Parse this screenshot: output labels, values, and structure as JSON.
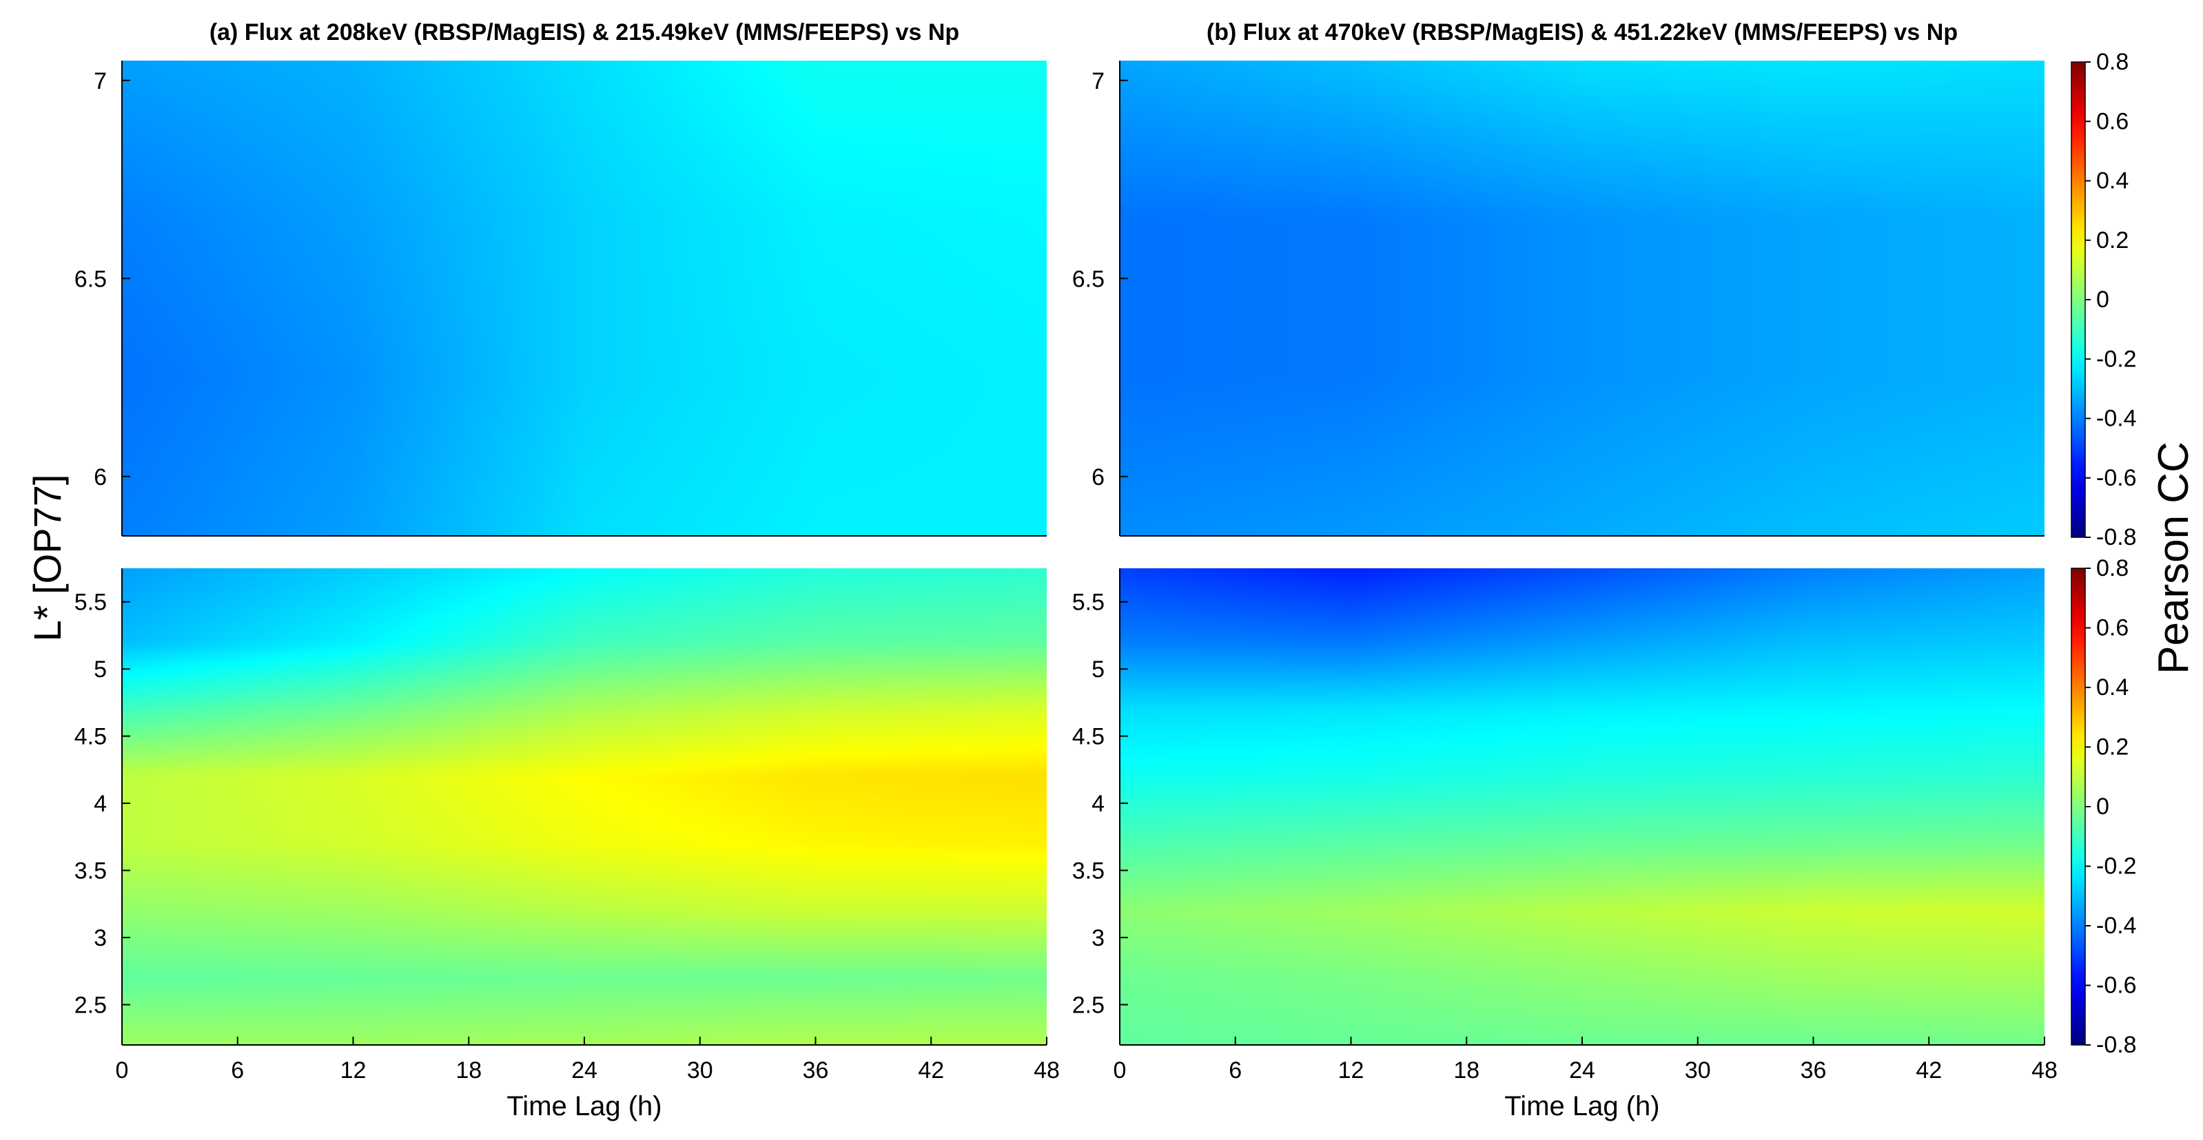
{
  "figure": {
    "ylabel": "L* [OP77]",
    "xlabel": "Time Lag (h)",
    "colorbar_label": "Pearson CC"
  },
  "chart_data": [
    {
      "type": "heatmap",
      "panel": "top-left",
      "title": "(a) Flux at 208keV (RBSP/MagEIS) & 215.49keV (MMS/FEEPS) vs Np",
      "xlabel": "",
      "ylabel": "L* [OP77]",
      "xlim": [
        0,
        48
      ],
      "ylim": [
        5.85,
        7.05
      ],
      "xticks": [],
      "yticks": [
        6,
        6.5,
        7
      ],
      "ytick_labels": [
        "6",
        "6.5",
        "7"
      ],
      "x": [
        0,
        12,
        24,
        36,
        48
      ],
      "y": [
        5.85,
        6.25,
        6.65,
        7.05
      ],
      "values": [
        [
          -0.4,
          -0.35,
          -0.25,
          -0.22,
          -0.22
        ],
        [
          -0.42,
          -0.37,
          -0.27,
          -0.23,
          -0.22
        ],
        [
          -0.4,
          -0.35,
          -0.27,
          -0.22,
          -0.21
        ],
        [
          -0.35,
          -0.32,
          -0.25,
          -0.18,
          -0.18
        ]
      ],
      "clim": [
        -0.8,
        0.8
      ],
      "colormap": "jet"
    },
    {
      "type": "heatmap",
      "panel": "bottom-left",
      "title": "",
      "xlabel": "Time Lag (h)",
      "ylabel": "L* [OP77]",
      "xlim": [
        0,
        48
      ],
      "ylim": [
        2.2,
        5.75
      ],
      "xticks": [
        0,
        6,
        12,
        18,
        24,
        30,
        36,
        42,
        48
      ],
      "yticks": [
        2.5,
        3,
        3.5,
        4,
        4.5,
        5,
        5.5
      ],
      "ytick_labels": [
        "2.5",
        "3",
        "3.5",
        "4",
        "4.5",
        "5",
        "5.5"
      ],
      "x": [
        0,
        12,
        24,
        36,
        48
      ],
      "y": [
        2.2,
        2.7,
        3.2,
        3.7,
        4.2,
        4.7,
        5.2,
        5.75
      ],
      "values": [
        [
          0.05,
          0.05,
          0.06,
          0.08,
          0.08
        ],
        [
          -0.05,
          -0.04,
          -0.03,
          -0.03,
          -0.02
        ],
        [
          0.03,
          0.05,
          0.09,
          0.12,
          0.12
        ],
        [
          0.1,
          0.13,
          0.18,
          0.21,
          0.22
        ],
        [
          0.1,
          0.14,
          0.2,
          0.24,
          0.25
        ],
        [
          -0.1,
          -0.03,
          0.07,
          0.12,
          0.14
        ],
        [
          -0.3,
          -0.22,
          -0.1,
          -0.06,
          -0.05
        ],
        [
          -0.35,
          -0.28,
          -0.2,
          -0.15,
          -0.13
        ]
      ],
      "clim": [
        -0.8,
        0.8
      ],
      "colormap": "jet"
    },
    {
      "type": "heatmap",
      "panel": "top-right",
      "title": "(b) Flux at 470keV (RBSP/MagEIS) & 451.22keV (MMS/FEEPS) vs Np",
      "xlabel": "",
      "ylabel": "",
      "xlim": [
        0,
        48
      ],
      "ylim": [
        5.85,
        7.05
      ],
      "xticks": [],
      "yticks": [
        6,
        6.5,
        7
      ],
      "ytick_labels": [
        "6",
        "6.5",
        "7"
      ],
      "x": [
        0,
        12,
        24,
        36,
        48
      ],
      "y": [
        5.85,
        6.25,
        6.65,
        7.05
      ],
      "values": [
        [
          -0.38,
          -0.36,
          -0.33,
          -0.3,
          -0.28
        ],
        [
          -0.42,
          -0.41,
          -0.37,
          -0.34,
          -0.32
        ],
        [
          -0.42,
          -0.41,
          -0.37,
          -0.34,
          -0.32
        ],
        [
          -0.34,
          -0.3,
          -0.25,
          -0.24,
          -0.25
        ]
      ],
      "clim": [
        -0.8,
        0.8
      ],
      "colormap": "jet"
    },
    {
      "type": "heatmap",
      "panel": "bottom-right",
      "title": "",
      "xlabel": "Time Lag (h)",
      "ylabel": "",
      "xlim": [
        0,
        48
      ],
      "ylim": [
        2.2,
        5.75
      ],
      "xticks": [
        0,
        6,
        12,
        18,
        24,
        30,
        36,
        42,
        48
      ],
      "yticks": [
        2.5,
        3,
        3.5,
        4,
        4.5,
        5,
        5.5
      ],
      "ytick_labels": [
        "2.5",
        "3",
        "3.5",
        "4",
        "4.5",
        "5",
        "5.5"
      ],
      "x": [
        0,
        12,
        24,
        36,
        48
      ],
      "y": [
        2.2,
        2.7,
        3.2,
        3.7,
        4.2,
        4.7,
        5.2,
        5.75
      ],
      "values": [
        [
          -0.05,
          -0.04,
          -0.03,
          -0.03,
          -0.02
        ],
        [
          -0.03,
          -0.01,
          0.02,
          0.05,
          0.06
        ],
        [
          0.02,
          0.05,
          0.09,
          0.12,
          0.13
        ],
        [
          -0.08,
          -0.06,
          -0.04,
          -0.03,
          -0.02
        ],
        [
          -0.18,
          -0.17,
          -0.15,
          -0.14,
          -0.13
        ],
        [
          -0.25,
          -0.24,
          -0.22,
          -0.21,
          -0.2
        ],
        [
          -0.4,
          -0.41,
          -0.35,
          -0.3,
          -0.28
        ],
        [
          -0.5,
          -0.55,
          -0.48,
          -0.4,
          -0.35
        ]
      ],
      "clim": [
        -0.8,
        0.8
      ],
      "colormap": "jet"
    }
  ],
  "colorbars": [
    {
      "clim": [
        -0.8,
        0.8
      ],
      "ticks": [
        "-0.8",
        "-0.6",
        "-0.4",
        "-0.2",
        "0",
        "0.2",
        "0.4",
        "0.6",
        "0.8"
      ]
    },
    {
      "clim": [
        -0.8,
        0.8
      ],
      "ticks": [
        "-0.8",
        "-0.6",
        "-0.4",
        "-0.2",
        "0",
        "0.2",
        "0.4",
        "0.6",
        "0.8"
      ]
    }
  ]
}
